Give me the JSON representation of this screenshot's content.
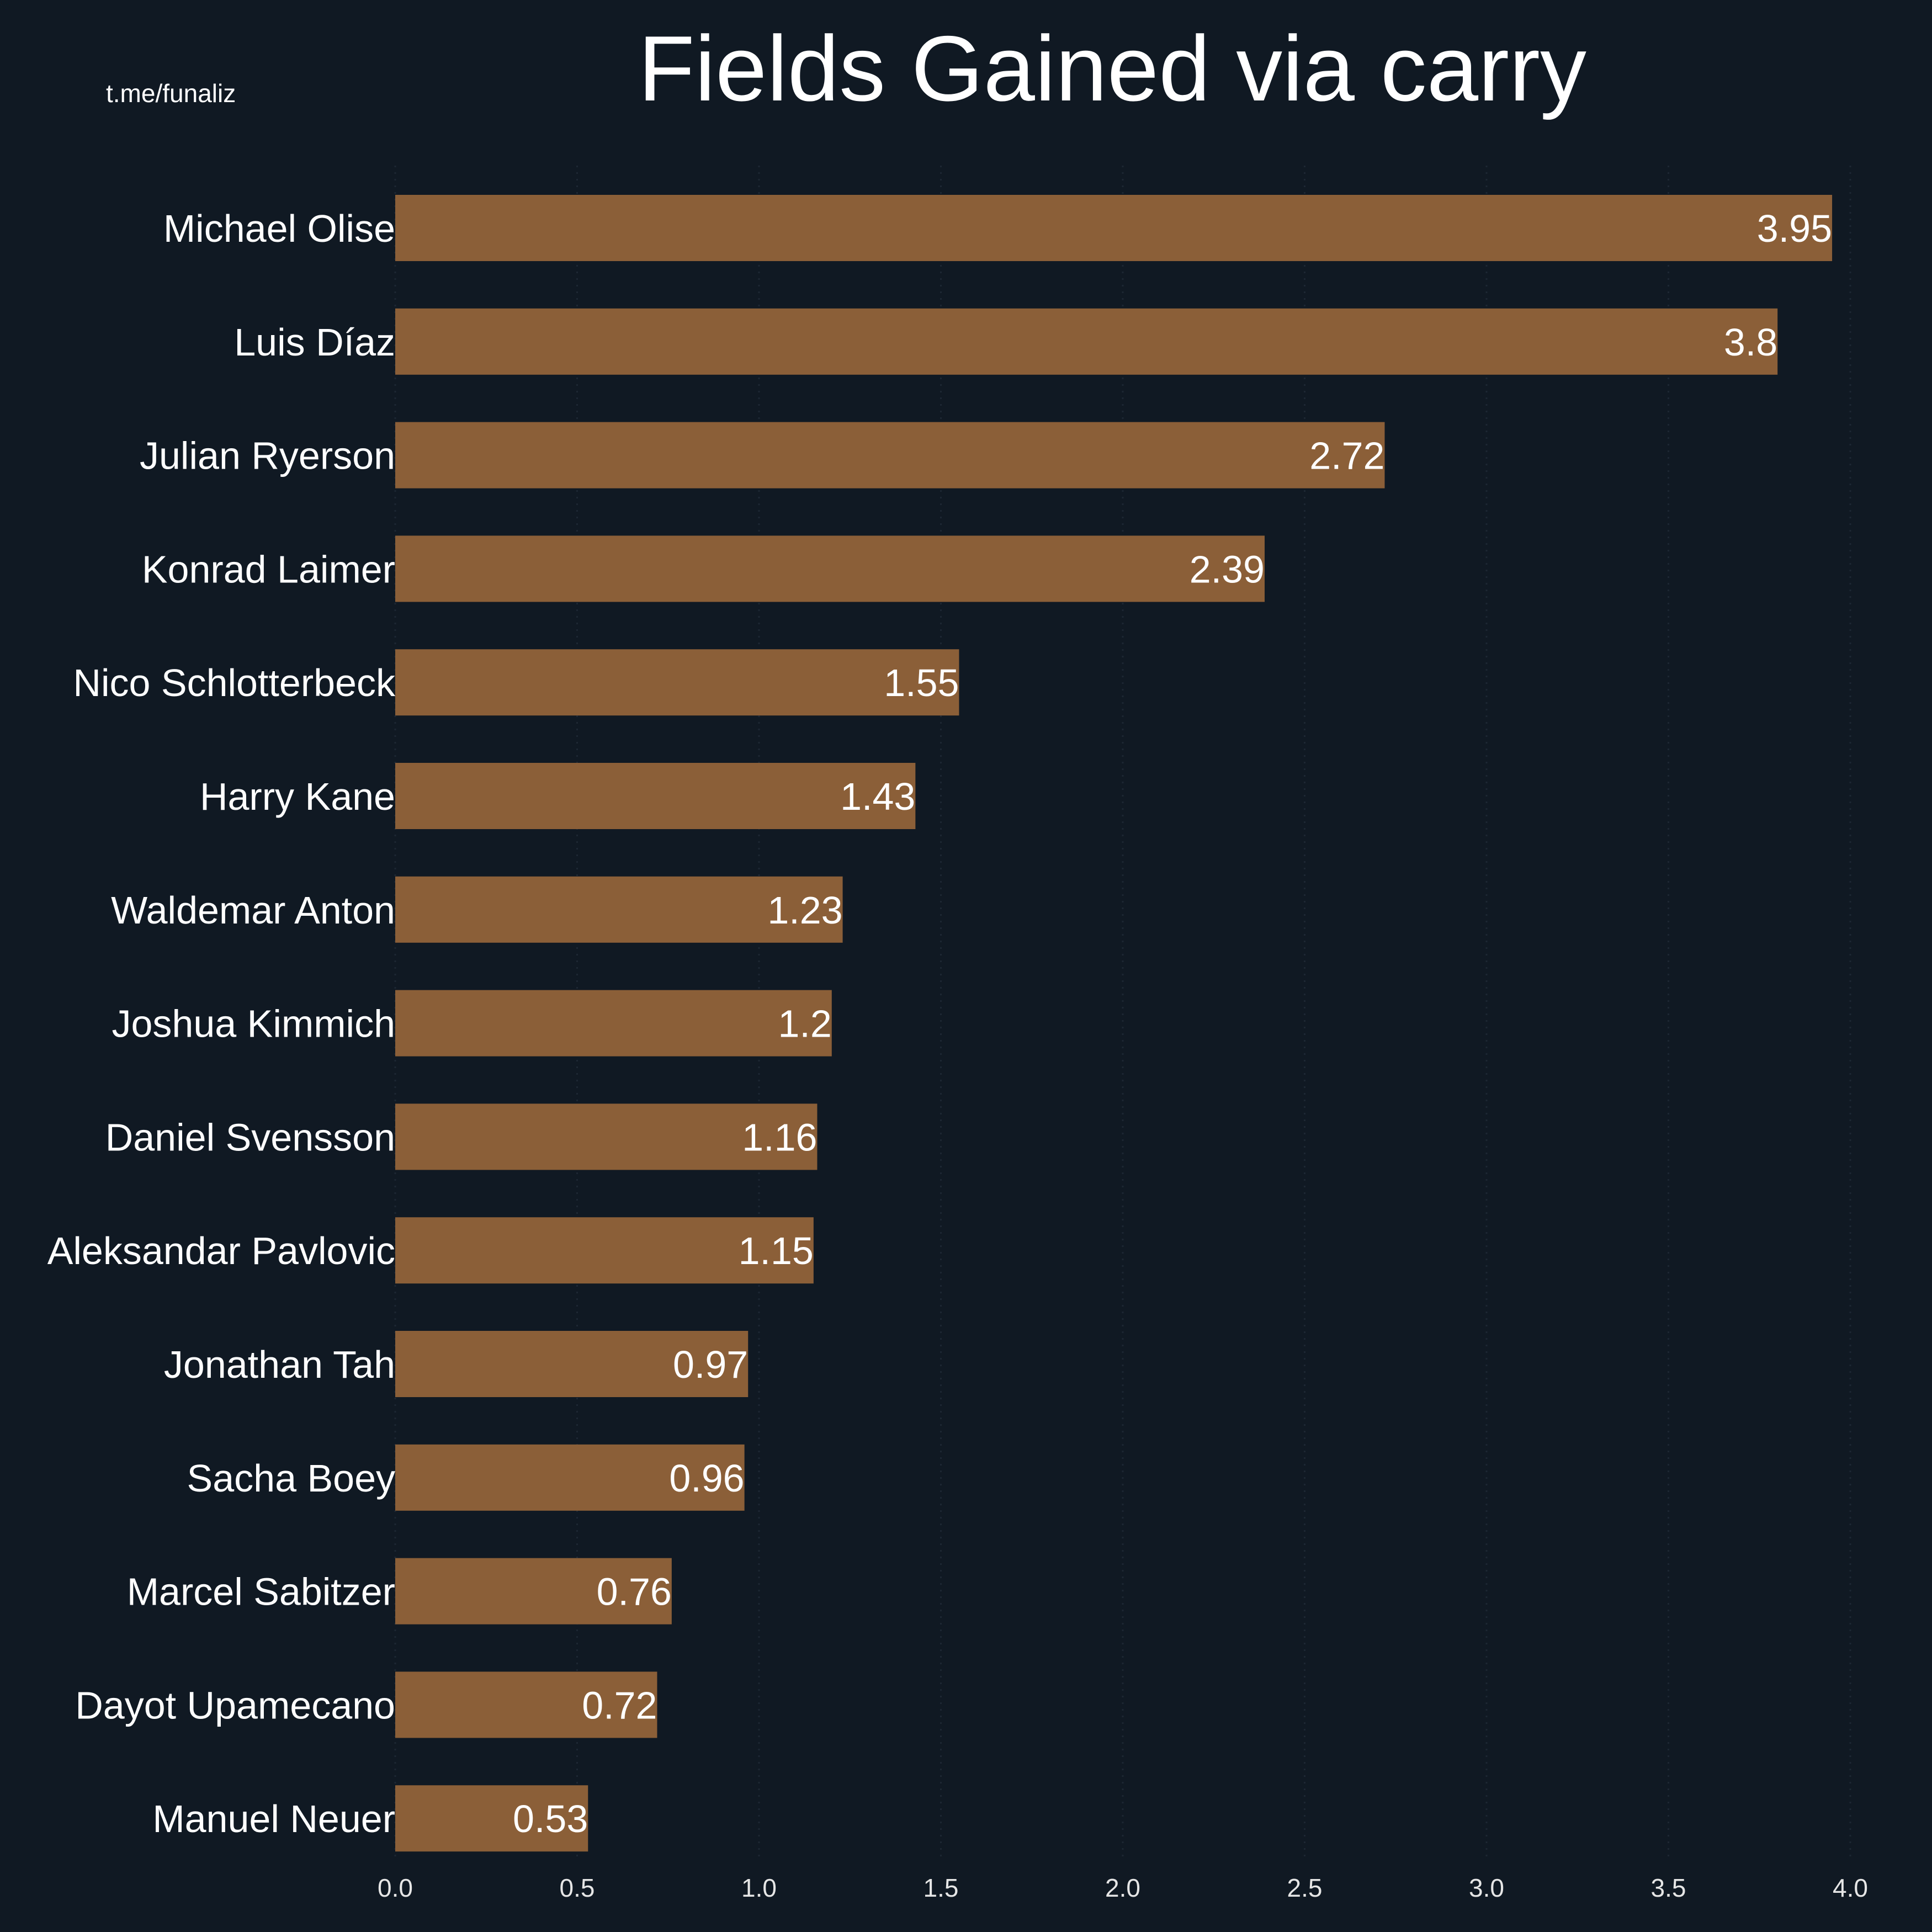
{
  "colors": {
    "background": "#101923",
    "bar": "#8b5f38",
    "text": "#ffffff",
    "tick_text": "#e6e6e6",
    "grid": "#1d2733"
  },
  "watermark": "t.me/funaliz",
  "chart_data": {
    "type": "bar",
    "orientation": "horizontal",
    "title": "Fields Gained via carry",
    "xlabel": "",
    "ylabel": "",
    "xlim": [
      0,
      4.0
    ],
    "grid": true,
    "xticks": [
      "0.0",
      "0.5",
      "1.0",
      "1.5",
      "2.0",
      "2.5",
      "3.0",
      "3.5",
      "4.0"
    ],
    "categories": [
      "Michael Olise",
      "Luis Díaz",
      "Julian Ryerson",
      "Konrad Laimer",
      "Nico Schlotterbeck",
      "Harry Kane",
      "Waldemar Anton",
      "Joshua Kimmich",
      "Daniel Svensson",
      "Aleksandar Pavlovic",
      "Jonathan Tah",
      "Sacha Boey",
      "Marcel Sabitzer",
      "Dayot Upamecano",
      "Manuel Neuer"
    ],
    "values": [
      3.95,
      3.8,
      2.72,
      2.39,
      1.55,
      1.43,
      1.23,
      1.2,
      1.16,
      1.15,
      0.97,
      0.96,
      0.76,
      0.72,
      0.53
    ],
    "value_labels": [
      "3.95",
      "3.8",
      "2.72",
      "2.39",
      "1.55",
      "1.43",
      "1.23",
      "1.2",
      "1.16",
      "1.15",
      "0.97",
      "0.96",
      "0.76",
      "0.72",
      "0.53"
    ]
  }
}
